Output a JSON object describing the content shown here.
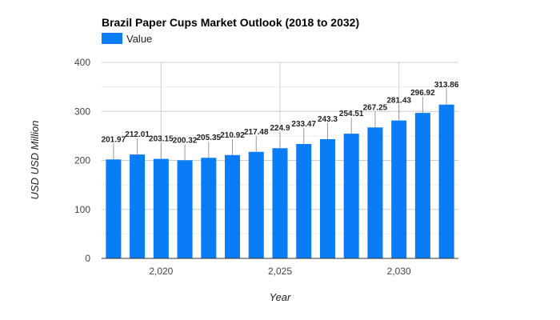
{
  "chart_data": {
    "type": "bar",
    "title": "Brazil Paper Cups Market Outlook (2018 to 2032)",
    "xlabel": "Year",
    "ylabel": "USD USD Million",
    "legend": {
      "position": "top-left",
      "entries": [
        "Value"
      ]
    },
    "series": [
      {
        "name": "Value",
        "color": "#0a7cf5",
        "values": [
          201.97,
          212.01,
          203.15,
          200.32,
          205.35,
          210.92,
          217.48,
          224.9,
          233.47,
          243.3,
          254.51,
          267.25,
          281.43,
          296.92,
          313.86
        ]
      }
    ],
    "x": [
      2018,
      2019,
      2020,
      2021,
      2022,
      2023,
      2024,
      2025,
      2026,
      2027,
      2028,
      2029,
      2030,
      2031,
      2032
    ],
    "value_labels": [
      "201.97",
      "212.01",
      "203.15",
      "200.32",
      "205.35",
      "210.92",
      "217.48",
      "224.9",
      "233.47",
      "243.3",
      "254.51",
      "267.25",
      "281.43",
      "296.92",
      "313.86"
    ],
    "ylim": [
      0,
      400
    ],
    "yticks": [
      0,
      100,
      200,
      300,
      400
    ],
    "ytick_labels": [
      "0",
      "100",
      "200",
      "300",
      "400"
    ],
    "xticks": [
      2020,
      2025,
      2030
    ],
    "xtick_labels": [
      "2,020",
      "2,025",
      "2,030"
    ],
    "grid": true
  }
}
